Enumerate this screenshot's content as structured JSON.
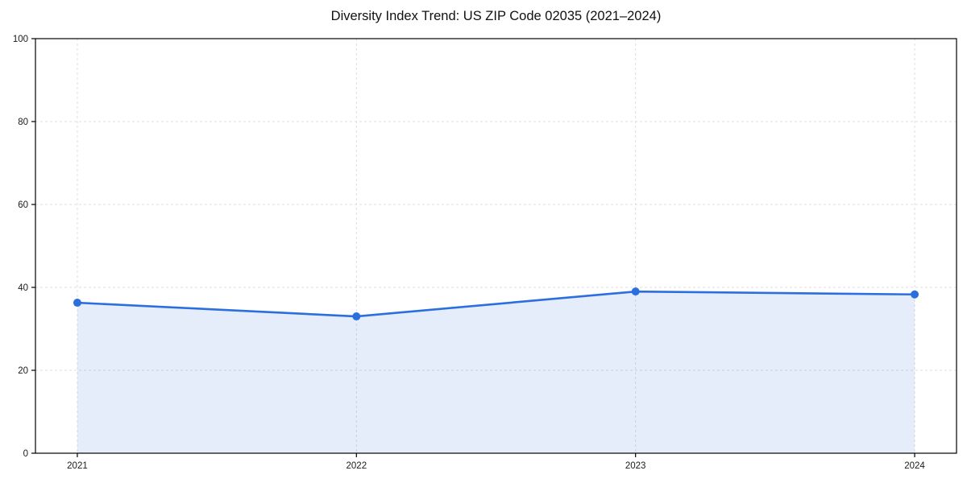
{
  "chart_data": {
    "type": "line",
    "title": "Diversity Index Trend: US ZIP Code 02035 (2021–2024)",
    "categories": [
      "2021",
      "2022",
      "2023",
      "2024"
    ],
    "series": [
      {
        "name": "Diversity Index",
        "values": [
          36.3,
          33.0,
          39.0,
          38.3
        ]
      }
    ],
    "xlabel": "",
    "ylabel": "",
    "ylim": [
      0,
      100
    ],
    "yticks": [
      0,
      20,
      40,
      60,
      80,
      100
    ],
    "grid": true,
    "grid_style": "dashed",
    "legend": "none",
    "area_fill": true,
    "marker": "circle",
    "colors": {
      "line": "#2b6fdf",
      "fill": "rgba(43,111,223,0.12)",
      "grid": "#dedede",
      "axis": "#000000",
      "tick_label": "#1a1a1a",
      "title": "#111111",
      "background": "#ffffff"
    }
  }
}
